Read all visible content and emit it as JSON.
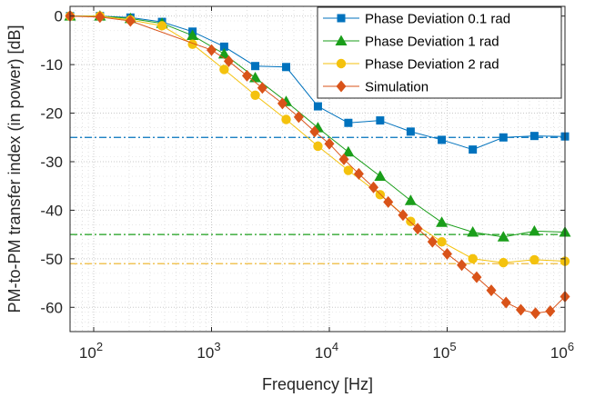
{
  "chart_data": {
    "type": "line",
    "xscale": "log",
    "xlabel": "Frequency [Hz]",
    "ylabel": "PM-to-PM transfer index (in power) [dB]",
    "xlim": [
      63,
      1000000
    ],
    "ylim": [
      -65,
      2
    ],
    "grid": true,
    "legend_position": "top-right",
    "x_ticks": [
      {
        "value": 100,
        "base": "10",
        "exp": "2"
      },
      {
        "value": 1000,
        "base": "10",
        "exp": "3"
      },
      {
        "value": 10000,
        "base": "10",
        "exp": "4"
      },
      {
        "value": 100000,
        "base": "10",
        "exp": "5"
      },
      {
        "value": 1000000,
        "base": "10",
        "exp": "6"
      }
    ],
    "y_ticks": [
      {
        "value": 0,
        "label": "0"
      },
      {
        "value": -10,
        "label": "-10"
      },
      {
        "value": -20,
        "label": "-20"
      },
      {
        "value": -30,
        "label": "-30"
      },
      {
        "value": -40,
        "label": "-40"
      },
      {
        "value": -50,
        "label": "-50"
      },
      {
        "value": -60,
        "label": "-60"
      }
    ],
    "reference_lines": [
      {
        "y": -25,
        "color": "#0072BD"
      },
      {
        "y": -45,
        "color": "#1a9e1a"
      },
      {
        "y": -51,
        "color": "#EDB120"
      }
    ],
    "series": [
      {
        "name": "Phase Deviation 0.1 rad",
        "color": "#0072BD",
        "marker": "square",
        "x": [
          63,
          113,
          205,
          380,
          690,
          1280,
          2350,
          4300,
          8000,
          14500,
          27000,
          49000,
          90000,
          165000,
          300000,
          550000,
          1000000
        ],
        "y": [
          0,
          0,
          -0.3,
          -1.2,
          -3.2,
          -6.3,
          -10.3,
          -10.5,
          -18.6,
          -22,
          -21.5,
          -23.8,
          -25.5,
          -27.5,
          -25,
          -24.7,
          -24.8
        ]
      },
      {
        "name": "Phase Deviation 1 rad",
        "color": "#1a9e1a",
        "marker": "triangle",
        "x": [
          63,
          113,
          205,
          380,
          690,
          1280,
          2350,
          4300,
          8000,
          14500,
          27000,
          49000,
          90000,
          165000,
          300000,
          550000,
          1000000
        ],
        "y": [
          0,
          0,
          -0.5,
          -1.5,
          -4,
          -7.8,
          -12.7,
          -17.6,
          -23,
          -28,
          -33,
          -38,
          -42.5,
          -44.5,
          -45.5,
          -44.3,
          -44.5
        ]
      },
      {
        "name": "Phase Deviation 2 rad",
        "color": "#F4C20D",
        "marker": "circle",
        "x": [
          63,
          113,
          205,
          380,
          690,
          1280,
          2350,
          4300,
          8000,
          14500,
          27000,
          49000,
          90000,
          165000,
          300000,
          550000,
          1000000
        ],
        "y": [
          0,
          0,
          -0.8,
          -2,
          -5.8,
          -11,
          -16.3,
          -21.3,
          -26.8,
          -31.8,
          -36.8,
          -42.3,
          -46.5,
          -50,
          -50.8,
          -50.2,
          -50.5
        ]
      },
      {
        "name": "Simulation",
        "color": "#D95319",
        "marker": "diamond",
        "x": [
          63,
          113,
          205,
          1000,
          1400,
          2000,
          2700,
          4000,
          5500,
          7500,
          10000,
          13300,
          17800,
          23700,
          31600,
          42200,
          56200,
          75000,
          100000,
          133000,
          178000,
          237000,
          316000,
          422000,
          562000,
          750000,
          1000000
        ],
        "y": [
          0,
          -0.2,
          -1,
          -7,
          -9.3,
          -12.3,
          -14.8,
          -18,
          -20.8,
          -23.8,
          -26.3,
          -29.5,
          -32.5,
          -35.3,
          -38.3,
          -41,
          -43.8,
          -46.5,
          -49,
          -51.3,
          -53.8,
          -56.5,
          -59,
          -60.5,
          -61.2,
          -60.8,
          -57.8
        ]
      }
    ]
  }
}
